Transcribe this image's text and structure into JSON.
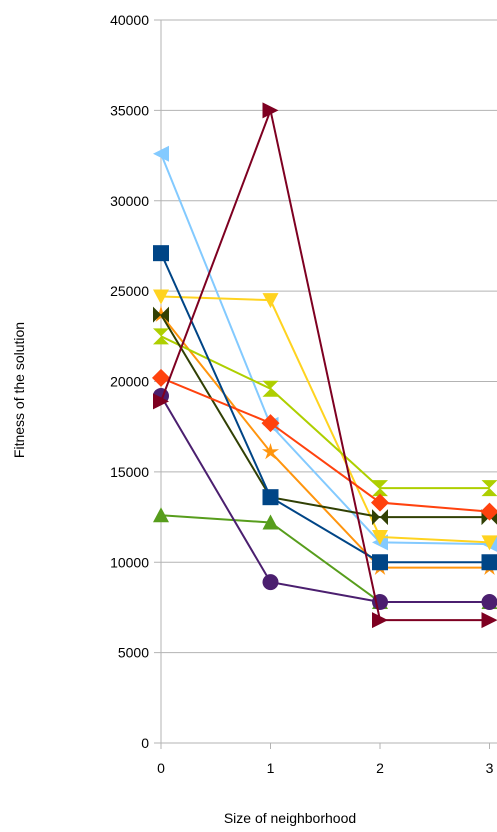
{
  "chart_data": {
    "type": "line",
    "title": "",
    "xlabel": "Size of neighborhood",
    "ylabel": "Fitness of the solution",
    "x": [
      0,
      1,
      2,
      3
    ],
    "x_tick_labels": [
      "0",
      "1",
      "2",
      "3"
    ],
    "ylim": [
      0,
      40000
    ],
    "y_ticks": [
      0,
      5000,
      10000,
      15000,
      20000,
      25000,
      30000,
      35000,
      40000
    ],
    "y_tick_labels": [
      "0",
      "5000",
      "10000",
      "15000",
      "20000",
      "25000",
      "30000",
      "35000",
      "40000"
    ],
    "grid": "horizontal",
    "legend": "none",
    "series": [
      {
        "color": "#83caff",
        "marker": "triangle-left",
        "values": [
          32600,
          17600,
          11100,
          11000
        ]
      },
      {
        "color": "#ff950e",
        "marker": "star",
        "values": [
          23700,
          16100,
          9700,
          9700
        ]
      },
      {
        "color": "#ffd320",
        "marker": "triangle-down",
        "values": [
          24700,
          24500,
          11400,
          11100
        ]
      },
      {
        "color": "#aecf00",
        "marker": "hourglass",
        "values": [
          22500,
          19600,
          14100,
          14100
        ]
      },
      {
        "color": "#314004",
        "marker": "bowtie",
        "values": [
          23700,
          13600,
          12500,
          12500
        ]
      },
      {
        "color": "#ff420e",
        "marker": "diamond",
        "values": [
          20200,
          17700,
          13300,
          12800
        ]
      },
      {
        "color": "#004586",
        "marker": "square",
        "values": [
          27100,
          13600,
          10000,
          10000
        ]
      },
      {
        "color": "#579d1c",
        "marker": "triangle-up",
        "values": [
          12600,
          12200,
          7800,
          7800
        ]
      },
      {
        "color": "#4b1f6f",
        "marker": "circle",
        "values": [
          19200,
          8900,
          7800,
          7800
        ]
      },
      {
        "color": "#7e0021",
        "marker": "triangle-right",
        "values": [
          18900,
          35000,
          6800,
          6800
        ]
      }
    ]
  }
}
